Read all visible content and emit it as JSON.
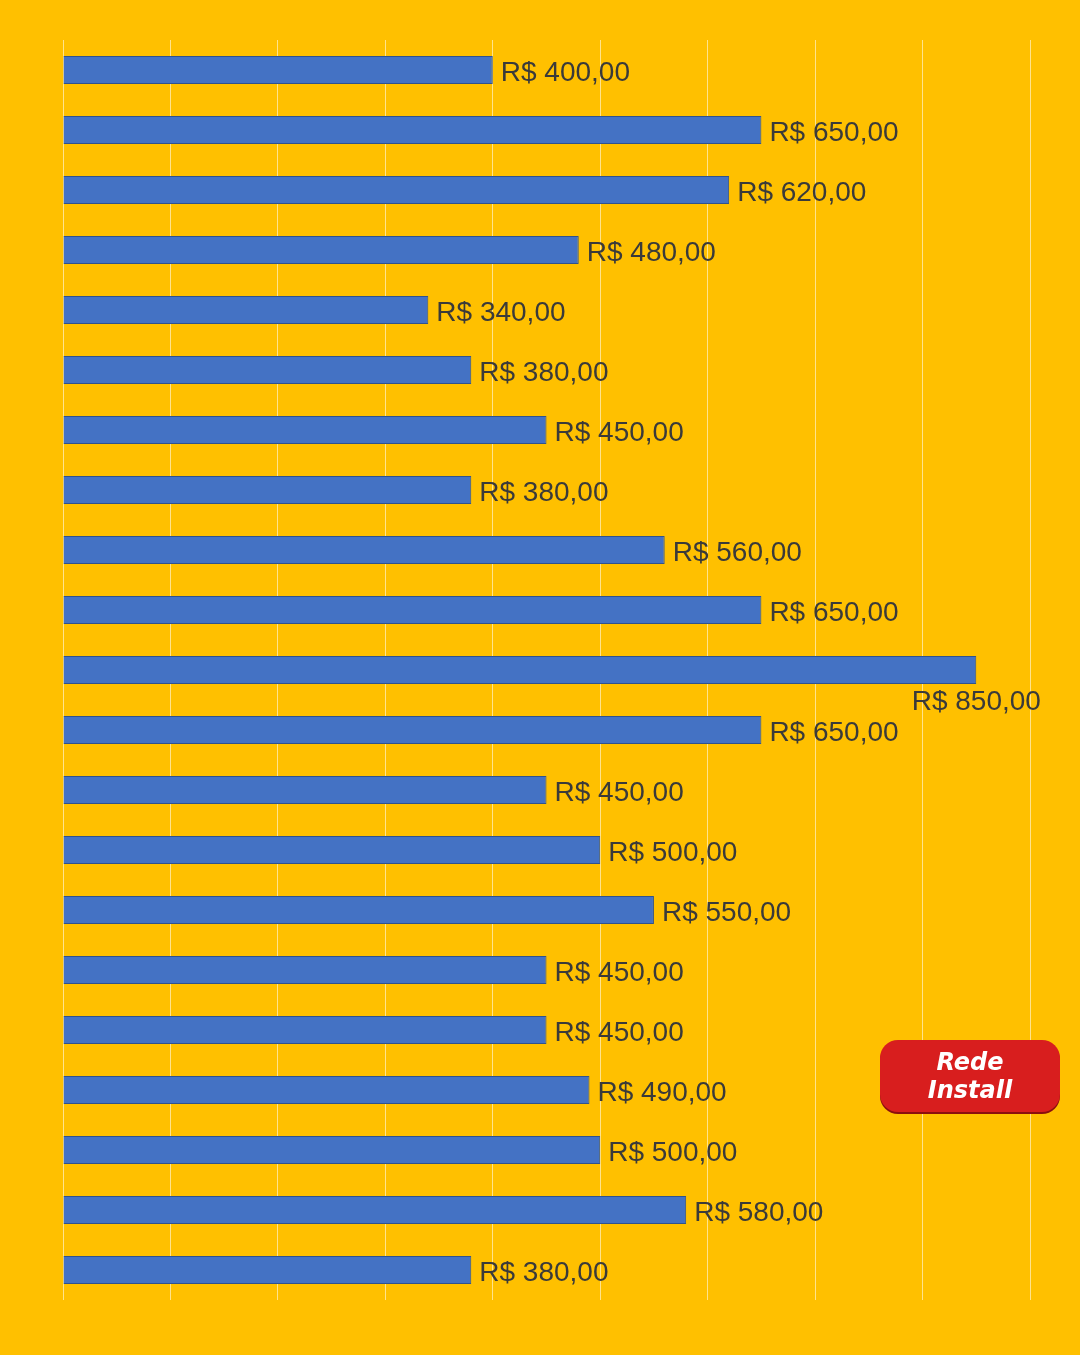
{
  "chart_data": {
    "type": "bar",
    "orientation": "horizontal",
    "categories": [
      null,
      null,
      null,
      null,
      null,
      null,
      null,
      null,
      null,
      null,
      null,
      null,
      null,
      null,
      null,
      null,
      null,
      null,
      null,
      null,
      null
    ],
    "values": [
      400,
      650,
      620,
      480,
      340,
      380,
      450,
      380,
      560,
      650,
      850,
      650,
      450,
      500,
      550,
      450,
      450,
      490,
      500,
      580,
      380
    ],
    "value_labels": [
      "R$ 400,00",
      "R$ 650,00",
      "R$ 620,00",
      "R$ 480,00",
      "R$ 340,00",
      "R$ 380,00",
      "R$ 450,00",
      "R$ 380,00",
      "R$ 560,00",
      "R$ 650,00",
      "R$ 850,00",
      "R$ 650,00",
      "R$ 450,00",
      "R$ 500,00",
      "R$ 550,00",
      "R$ 450,00",
      "R$ 450,00",
      "R$ 490,00",
      "R$ 500,00",
      "R$ 580,00",
      "R$ 380,00"
    ],
    "data_labels": true,
    "color": "#4472c4",
    "xlim": [
      0,
      900
    ],
    "xticks": [
      0,
      100,
      200,
      300,
      400,
      500,
      600,
      700,
      800,
      900
    ],
    "grid": true,
    "tick_labels": false,
    "annotations": [
      "Rede Install"
    ]
  }
}
